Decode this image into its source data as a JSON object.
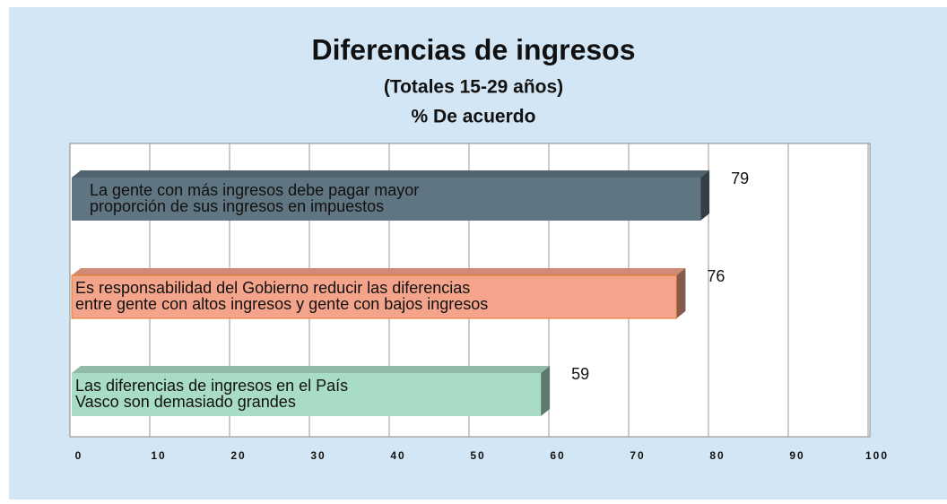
{
  "chart_data": {
    "type": "bar",
    "orientation": "horizontal",
    "title": "Diferencias de ingresos",
    "subtitle": "(Totales 15-29 años)",
    "measure": "% De acuerdo",
    "categories": [
      [
        "La gente con más ingresos debe pagar mayor",
        "proporción de sus ingresos en impuestos"
      ],
      [
        "Es responsabilidad del Gobierno reducir las diferencias",
        "entre gente con altos ingresos y gente con bajos ingresos"
      ],
      [
        "Las diferencias de ingresos en el País",
        "Vasco son demasiado grandes"
      ]
    ],
    "values": [
      79,
      76,
      59
    ],
    "colors": [
      "#5f7581",
      "#f4a48a",
      "#a9dcc4"
    ],
    "xlim": [
      0,
      100
    ],
    "xticks": [
      0,
      10,
      20,
      30,
      40,
      50,
      60,
      70,
      80,
      90,
      100
    ],
    "grid": true
  }
}
